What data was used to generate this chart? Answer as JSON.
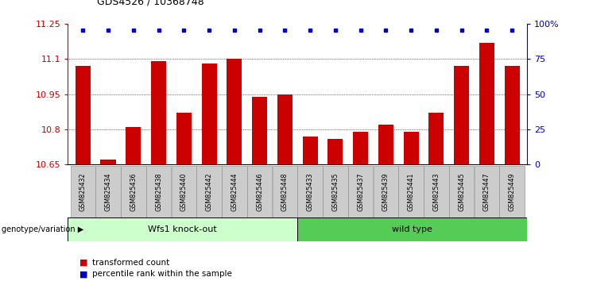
{
  "title": "GDS4526 / 10368748",
  "samples": [
    "GSM825432",
    "GSM825434",
    "GSM825436",
    "GSM825438",
    "GSM825440",
    "GSM825442",
    "GSM825444",
    "GSM825446",
    "GSM825448",
    "GSM825433",
    "GSM825435",
    "GSM825437",
    "GSM825439",
    "GSM825441",
    "GSM825443",
    "GSM825445",
    "GSM825447",
    "GSM825449"
  ],
  "bar_values": [
    11.07,
    10.67,
    10.81,
    11.09,
    10.87,
    11.08,
    11.1,
    10.94,
    10.95,
    10.77,
    10.76,
    10.79,
    10.82,
    10.79,
    10.87,
    11.07,
    11.17,
    11.07
  ],
  "percentile_values": [
    100,
    100,
    100,
    100,
    100,
    100,
    100,
    100,
    100,
    100,
    100,
    100,
    100,
    100,
    100,
    100,
    100,
    100
  ],
  "bar_color": "#cc0000",
  "dot_color": "#0000bb",
  "ylim_left": [
    10.65,
    11.25
  ],
  "ylim_right": [
    0,
    100
  ],
  "yticks_left": [
    10.65,
    10.8,
    10.95,
    11.1,
    11.25
  ],
  "yticks_right": [
    0,
    25,
    50,
    75,
    100
  ],
  "ytick_labels_left": [
    "10.65",
    "10.8",
    "10.95",
    "11.1",
    "11.25"
  ],
  "ytick_labels_right": [
    "0",
    "25",
    "50",
    "75",
    "100%"
  ],
  "group1_label": "Wfs1 knock-out",
  "group2_label": "wild type",
  "group1_color": "#ccffcc",
  "group2_color": "#55cc55",
  "group1_count": 9,
  "group2_count": 9,
  "genotype_label": "genotype/variation",
  "legend_bar_label": "transformed count",
  "legend_dot_label": "percentile rank within the sample",
  "bg_color": "#ffffff",
  "bar_width": 0.6,
  "tick_color_left": "#cc0000",
  "tick_color_right": "#0000bb",
  "sample_box_color": "#cccccc",
  "sample_box_edge": "#888888"
}
